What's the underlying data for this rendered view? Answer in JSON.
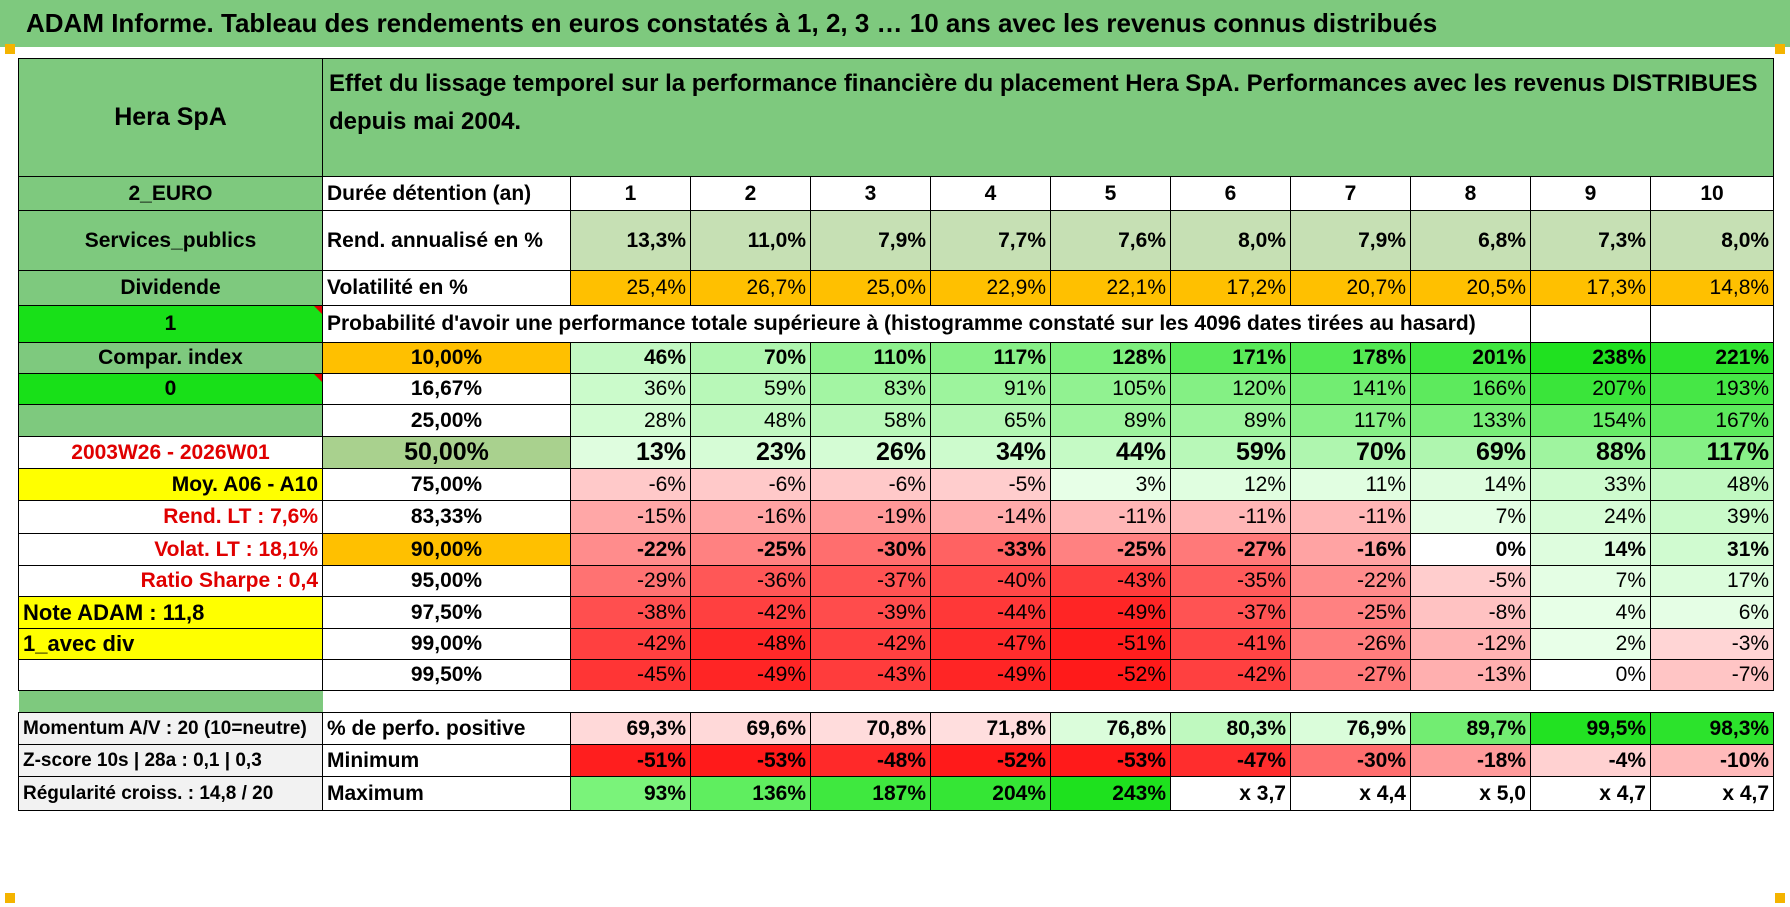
{
  "title": "ADAM Informe. Tableau des rendements en euros constatés à 1, 2, 3 … 10 ans avec les revenus connus distribués",
  "header": {
    "name": "Hera SpA",
    "description": "Effet du lissage temporel sur la performance financière du placement Hera SpA. Performances avec les revenus DISTRIBUES depuis mai 2004."
  },
  "left": {
    "currency": "2_EURO",
    "sector": "Services_publics",
    "type": "Dividende",
    "flag1": "1",
    "compar": "Compar. index",
    "flag0": "0",
    "empty": "",
    "period": "2003W26 - 2026W01",
    "moy": "Moy. A06 - A10",
    "rend_lt": "Rend. LT :    7,6%",
    "volat_lt": "Volat. LT :    18,1%",
    "sharpe": "Ratio Sharpe :     0,4",
    "note": "Note ADAM : 11,8",
    "avec_div": "1_avec div",
    "momentum": "Momentum A/V : 20 (10=neutre)",
    "zscore": "Z-score 10s | 28a : 0,1 | 0,3",
    "regularite": "Régularité croiss. : 14,8 / 20"
  },
  "row_labels": {
    "duree": "Durée détention (an)",
    "rend": "Rend. annualisé en %",
    "volat": "Volatilité en %",
    "proba": "Probabilité d'avoir une performance totale supérieure à (histogramme constaté sur les 4096 dates tirées au hasard)",
    "positive": "% de perfo. positive",
    "minimum": "Minimum",
    "maximum": "Maximum"
  },
  "years": [
    "1",
    "2",
    "3",
    "4",
    "5",
    "6",
    "7",
    "8",
    "9",
    "10"
  ],
  "rend": [
    "13,3%",
    "11,0%",
    "7,9%",
    "7,7%",
    "7,6%",
    "8,0%",
    "7,9%",
    "6,8%",
    "7,3%",
    "8,0%"
  ],
  "volat": [
    "25,4%",
    "26,7%",
    "25,0%",
    "22,9%",
    "22,1%",
    "17,2%",
    "20,7%",
    "20,5%",
    "17,3%",
    "14,8%"
  ],
  "percentiles": [
    {
      "p": "10,00%",
      "vals": [
        "46%",
        "70%",
        "110%",
        "117%",
        "128%",
        "171%",
        "178%",
        "201%",
        "238%",
        "221%"
      ]
    },
    {
      "p": "16,67%",
      "vals": [
        "36%",
        "59%",
        "83%",
        "91%",
        "105%",
        "120%",
        "141%",
        "166%",
        "207%",
        "193%"
      ]
    },
    {
      "p": "25,00%",
      "vals": [
        "28%",
        "48%",
        "58%",
        "65%",
        "89%",
        "89%",
        "117%",
        "133%",
        "154%",
        "167%"
      ]
    },
    {
      "p": "50,00%",
      "vals": [
        "13%",
        "23%",
        "26%",
        "34%",
        "44%",
        "59%",
        "70%",
        "69%",
        "88%",
        "117%"
      ]
    },
    {
      "p": "75,00%",
      "vals": [
        "-6%",
        "-6%",
        "-6%",
        "-5%",
        "3%",
        "12%",
        "11%",
        "14%",
        "33%",
        "48%"
      ]
    },
    {
      "p": "83,33%",
      "vals": [
        "-15%",
        "-16%",
        "-19%",
        "-14%",
        "-11%",
        "-11%",
        "-11%",
        "7%",
        "24%",
        "39%"
      ]
    },
    {
      "p": "90,00%",
      "vals": [
        "-22%",
        "-25%",
        "-30%",
        "-33%",
        "-25%",
        "-27%",
        "-16%",
        "0%",
        "14%",
        "31%"
      ]
    },
    {
      "p": "95,00%",
      "vals": [
        "-29%",
        "-36%",
        "-37%",
        "-40%",
        "-43%",
        "-35%",
        "-22%",
        "-5%",
        "7%",
        "17%"
      ]
    },
    {
      "p": "97,50%",
      "vals": [
        "-38%",
        "-42%",
        "-39%",
        "-44%",
        "-49%",
        "-37%",
        "-25%",
        "-8%",
        "4%",
        "6%"
      ]
    },
    {
      "p": "99,00%",
      "vals": [
        "-42%",
        "-48%",
        "-42%",
        "-47%",
        "-51%",
        "-41%",
        "-26%",
        "-12%",
        "2%",
        "-3%"
      ]
    },
    {
      "p": "99,50%",
      "vals": [
        "-45%",
        "-49%",
        "-43%",
        "-49%",
        "-52%",
        "-42%",
        "-27%",
        "-13%",
        "0%",
        "-7%"
      ]
    }
  ],
  "positive": [
    "69,3%",
    "69,6%",
    "70,8%",
    "71,8%",
    "76,8%",
    "80,3%",
    "76,9%",
    "89,7%",
    "99,5%",
    "98,3%"
  ],
  "minimum": [
    "-51%",
    "-53%",
    "-48%",
    "-52%",
    "-53%",
    "-47%",
    "-30%",
    "-18%",
    "-4%",
    "-10%"
  ],
  "maximum": [
    "93%",
    "136%",
    "187%",
    "204%",
    "243%",
    "x 3,7",
    "x 4,4",
    "x 5,0",
    "x 4,7",
    "x 4,7"
  ],
  "colors": {
    "title_bg": "#7ec97e",
    "label_bg": "#7ec97e",
    "rend_bg": "#c6e0b4",
    "volat_bg": "#ffc000",
    "flag_bg": "#18e018",
    "highlight": "#ffff00",
    "negative_text": "#e00000"
  }
}
